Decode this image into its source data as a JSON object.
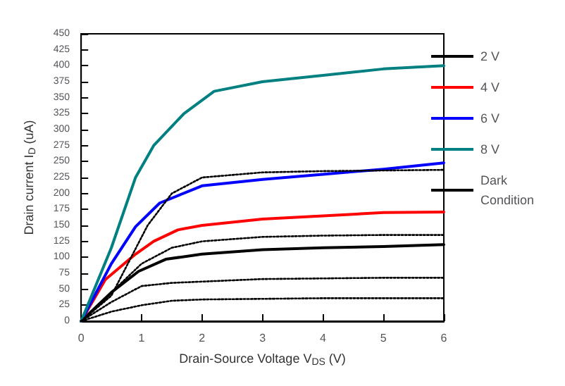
{
  "chart_data": {
    "type": "line",
    "xlabel": "Drain-Source Voltage V$_{DS}$ (V)",
    "ylabel": "Drain current I$_{D}$ (uA)",
    "xlim": [
      0,
      6
    ],
    "xticks": [
      0,
      1,
      2,
      3,
      4,
      5,
      6
    ],
    "ylim": [
      0,
      450
    ],
    "yticks": [
      0,
      25,
      50,
      75,
      100,
      125,
      150,
      175,
      200,
      225,
      250,
      275,
      300,
      325,
      350,
      375,
      400,
      425,
      450
    ],
    "grid": false,
    "legend": "right",
    "marker": "none",
    "series": [
      {
        "name": "2 V",
        "color": "#000000",
        "x": [
          0,
          0.5,
          0.95,
          1.4,
          2,
          3,
          4,
          5,
          6
        ],
        "values": [
          0,
          45,
          78,
          97,
          105,
          112,
          115,
          117,
          120
        ]
      },
      {
        "name": "4 V",
        "color": "#ff0000",
        "x": [
          0,
          0.4,
          0.9,
          1.2,
          1.6,
          2,
          3,
          4,
          5,
          6
        ],
        "values": [
          0,
          65,
          105,
          125,
          143,
          150,
          160,
          165,
          170,
          171
        ]
      },
      {
        "name": "6 V",
        "color": "#0000ff",
        "x": [
          0,
          0.5,
          0.9,
          1.3,
          2,
          3,
          4,
          5,
          6
        ],
        "values": [
          0,
          90,
          148,
          185,
          212,
          222,
          230,
          238,
          248
        ]
      },
      {
        "name": "8 V",
        "color": "#008080",
        "x": [
          0,
          0.5,
          0.9,
          1.2,
          1.7,
          2.2,
          3,
          4,
          5,
          6
        ],
        "values": [
          0,
          115,
          225,
          275,
          325,
          360,
          375,
          385,
          395,
          400
        ]
      },
      {
        "name": "Dark Condition",
        "color": "#000000",
        "line_style": "dotted",
        "x": [
          0,
          0.5,
          1.1,
          1.5,
          2,
          3,
          4,
          5,
          6
        ],
        "values": [
          0,
          40,
          150,
          200,
          225,
          233,
          235,
          236,
          237
        ]
      },
      {
        "color": "#000000",
        "line_style": "dotted",
        "x": [
          0,
          0.5,
          1,
          1.5,
          2,
          3,
          4,
          5,
          6
        ],
        "values": [
          0,
          45,
          90,
          115,
          125,
          132,
          134,
          135,
          135
        ]
      },
      {
        "color": "#000000",
        "line_style": "dotted",
        "x": [
          0,
          0.5,
          1,
          1.5,
          2,
          3,
          4,
          5,
          6
        ],
        "values": [
          0,
          30,
          55,
          60,
          62,
          66,
          67,
          68,
          68
        ]
      },
      {
        "color": "#000000",
        "line_style": "dotted",
        "x": [
          0,
          0.5,
          1,
          1.5,
          2,
          3,
          4,
          5,
          6
        ],
        "values": [
          0,
          15,
          25,
          32,
          34,
          35,
          36,
          36,
          36
        ]
      }
    ]
  }
}
